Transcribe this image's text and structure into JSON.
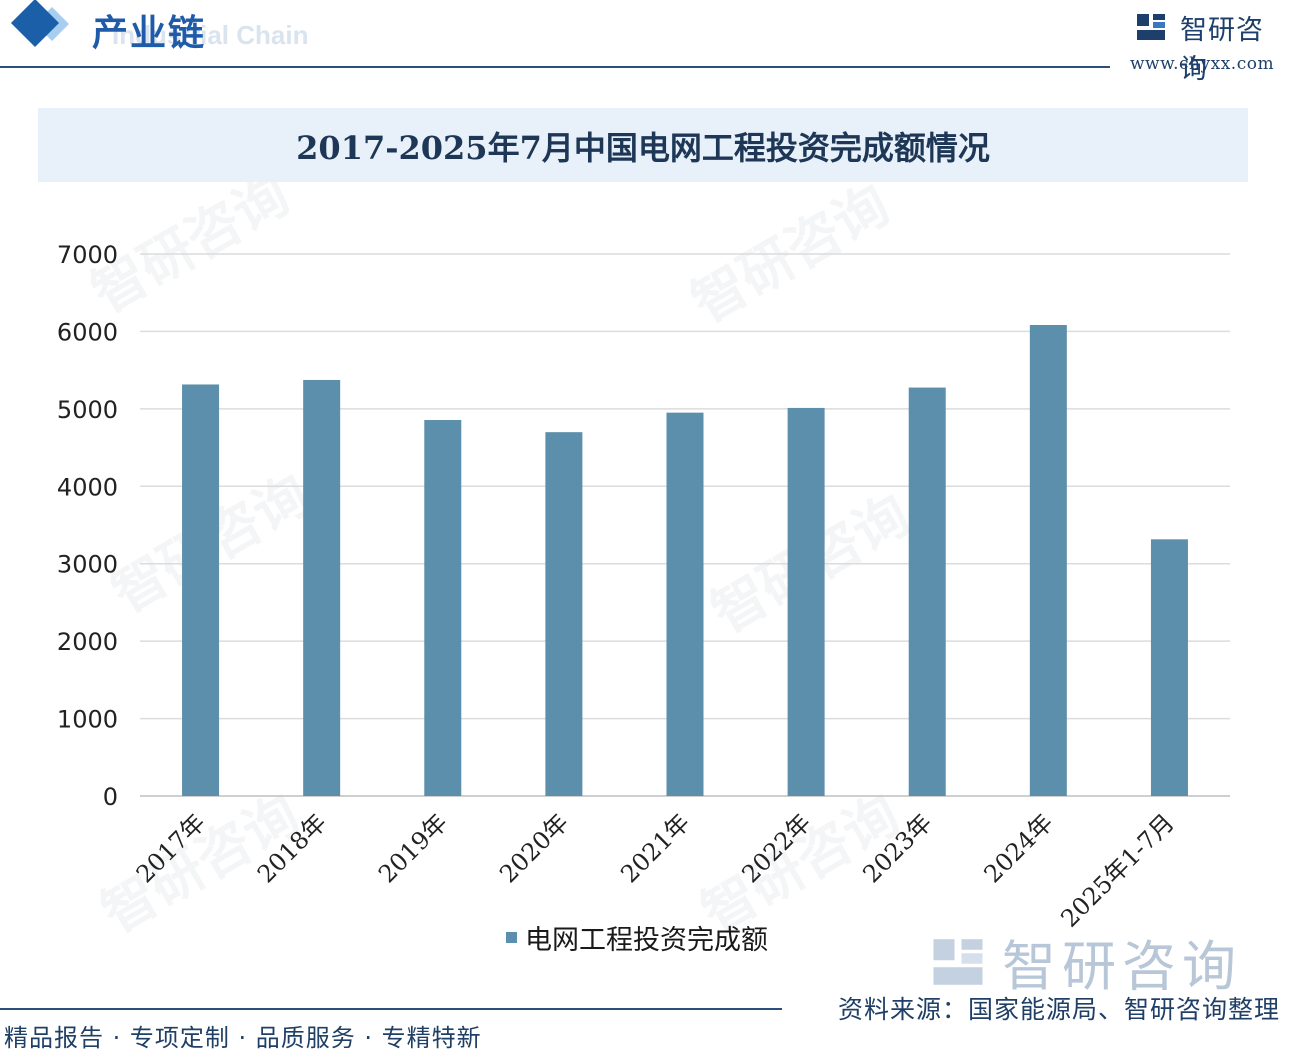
{
  "header": {
    "section_title": "产业链",
    "section_subtitle": "Industrial Chain",
    "logo_text": "智研咨询",
    "logo_url": "www.chyxx.com"
  },
  "watermark_text": "智研咨询",
  "colors": {
    "bar": "#5b8fab",
    "title_band": "#e8f1f9",
    "header_accent": "#1b5fa8"
  },
  "chart_data": {
    "type": "bar",
    "title": "2017-2025年7月中国电网工程投资完成额情况",
    "categories": [
      "2017年",
      "2018年",
      "2019年",
      "2020年",
      "2021年",
      "2022年",
      "2023年",
      "2024年",
      "2025年1-7月"
    ],
    "series": [
      {
        "name": "电网工程投资完成额",
        "values": [
          5315,
          5373,
          4856,
          4699,
          4951,
          5012,
          5275,
          6083,
          3315
        ]
      }
    ],
    "ylim": [
      0,
      7000
    ],
    "yticks": [
      0,
      1000,
      2000,
      3000,
      4000,
      5000,
      6000,
      7000
    ],
    "grid": true,
    "legend_position": "bottom"
  },
  "footer": {
    "left": "精品报告 · 专项定制 · 品质服务 · 专精特新",
    "source": "资料来源：国家能源局、智研咨询整理"
  }
}
